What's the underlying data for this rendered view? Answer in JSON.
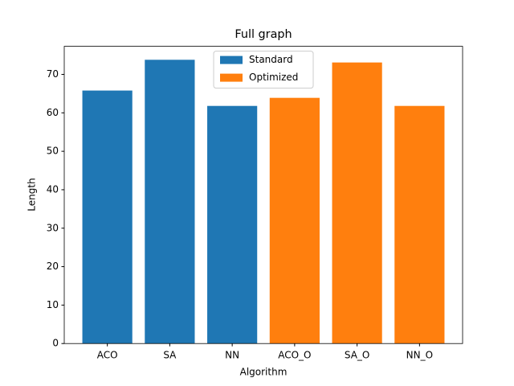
{
  "chart_data": {
    "type": "bar",
    "title": "Full graph",
    "xlabel": "Algorithm",
    "ylabel": "Length",
    "categories": [
      "ACO",
      "SA",
      "NN",
      "ACO_O",
      "SA_O",
      "NN_O"
    ],
    "series": [
      {
        "name": "Standard",
        "color": "#1f77b4",
        "values": [
          65.8,
          73.8,
          61.8,
          null,
          null,
          null
        ]
      },
      {
        "name": "Optimized",
        "color": "#ff7f0e",
        "values": [
          null,
          null,
          null,
          63.9,
          73.1,
          61.8
        ]
      }
    ],
    "ylim": [
      0,
      77.3
    ],
    "yticks": [
      0,
      10,
      20,
      30,
      40,
      50,
      60,
      70
    ],
    "grid": false,
    "legend": "upper center"
  }
}
